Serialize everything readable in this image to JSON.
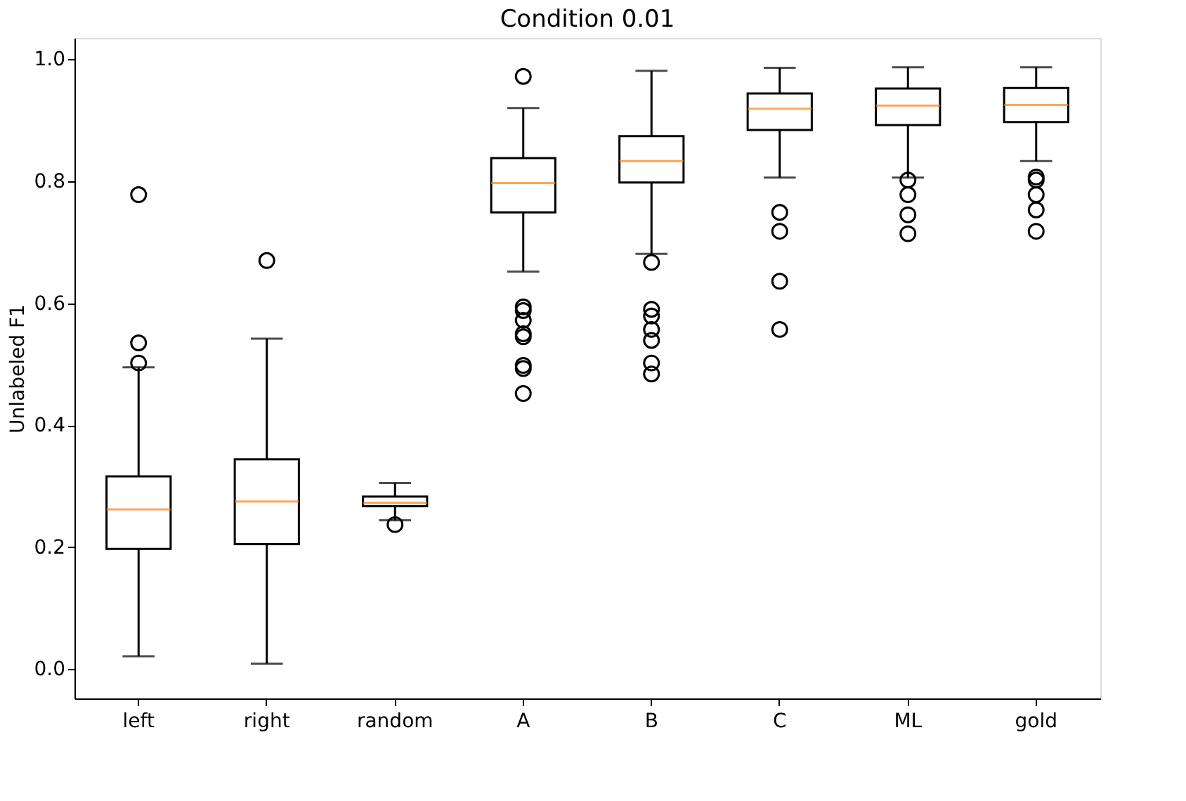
{
  "chart_data": {
    "type": "box",
    "title": "Condition 0.01",
    "ylabel": "Unlabeled F1",
    "categories": [
      "left",
      "right",
      "random",
      "A",
      "B",
      "C",
      "ML",
      "gold"
    ],
    "ylim": [
      -0.048,
      1.035
    ],
    "yticks": [
      {
        "value": 0,
        "label": "0.0"
      },
      {
        "value": 0.2,
        "label": "0.2"
      },
      {
        "value": 0.4,
        "label": "0.4"
      },
      {
        "value": 0.6,
        "label": "0.6"
      },
      {
        "value": 0.8,
        "label": "0.8"
      },
      {
        "value": 1,
        "label": "1.0"
      }
    ],
    "grid": false,
    "boxes": [
      {
        "low": 0.021,
        "q1": 0.197,
        "median": 0.262,
        "q3": 0.316,
        "high": 0.495,
        "outliers": [
          0.778,
          0.535,
          0.502
        ]
      },
      {
        "low": 0.009,
        "q1": 0.205,
        "median": 0.275,
        "q3": 0.344,
        "high": 0.542,
        "outliers": [
          0.67
        ]
      },
      {
        "low": 0.244,
        "q1": 0.267,
        "median": 0.273,
        "q3": 0.283,
        "high": 0.305,
        "outliers": [
          0.237
        ]
      },
      {
        "low": 0.652,
        "q1": 0.749,
        "median": 0.797,
        "q3": 0.838,
        "high": 0.92,
        "outliers": [
          0.972,
          0.594,
          0.588,
          0.572,
          0.55,
          0.545,
          0.498,
          0.493,
          0.452
        ]
      },
      {
        "low": 0.681,
        "q1": 0.798,
        "median": 0.833,
        "q3": 0.874,
        "high": 0.981,
        "outliers": [
          0.667,
          0.59,
          0.579,
          0.557,
          0.539,
          0.502,
          0.484
        ]
      },
      {
        "low": 0.806,
        "q1": 0.884,
        "median": 0.919,
        "q3": 0.944,
        "high": 0.986,
        "outliers": [
          0.749,
          0.718,
          0.636,
          0.557
        ]
      },
      {
        "low": 0.806,
        "q1": 0.892,
        "median": 0.924,
        "q3": 0.952,
        "high": 0.987,
        "outliers": [
          0.802,
          0.778,
          0.745,
          0.714
        ]
      },
      {
        "low": 0.833,
        "q1": 0.897,
        "median": 0.925,
        "q3": 0.953,
        "high": 0.987,
        "outliers": [
          0.807,
          0.802,
          0.778,
          0.753,
          0.718
        ]
      }
    ]
  }
}
